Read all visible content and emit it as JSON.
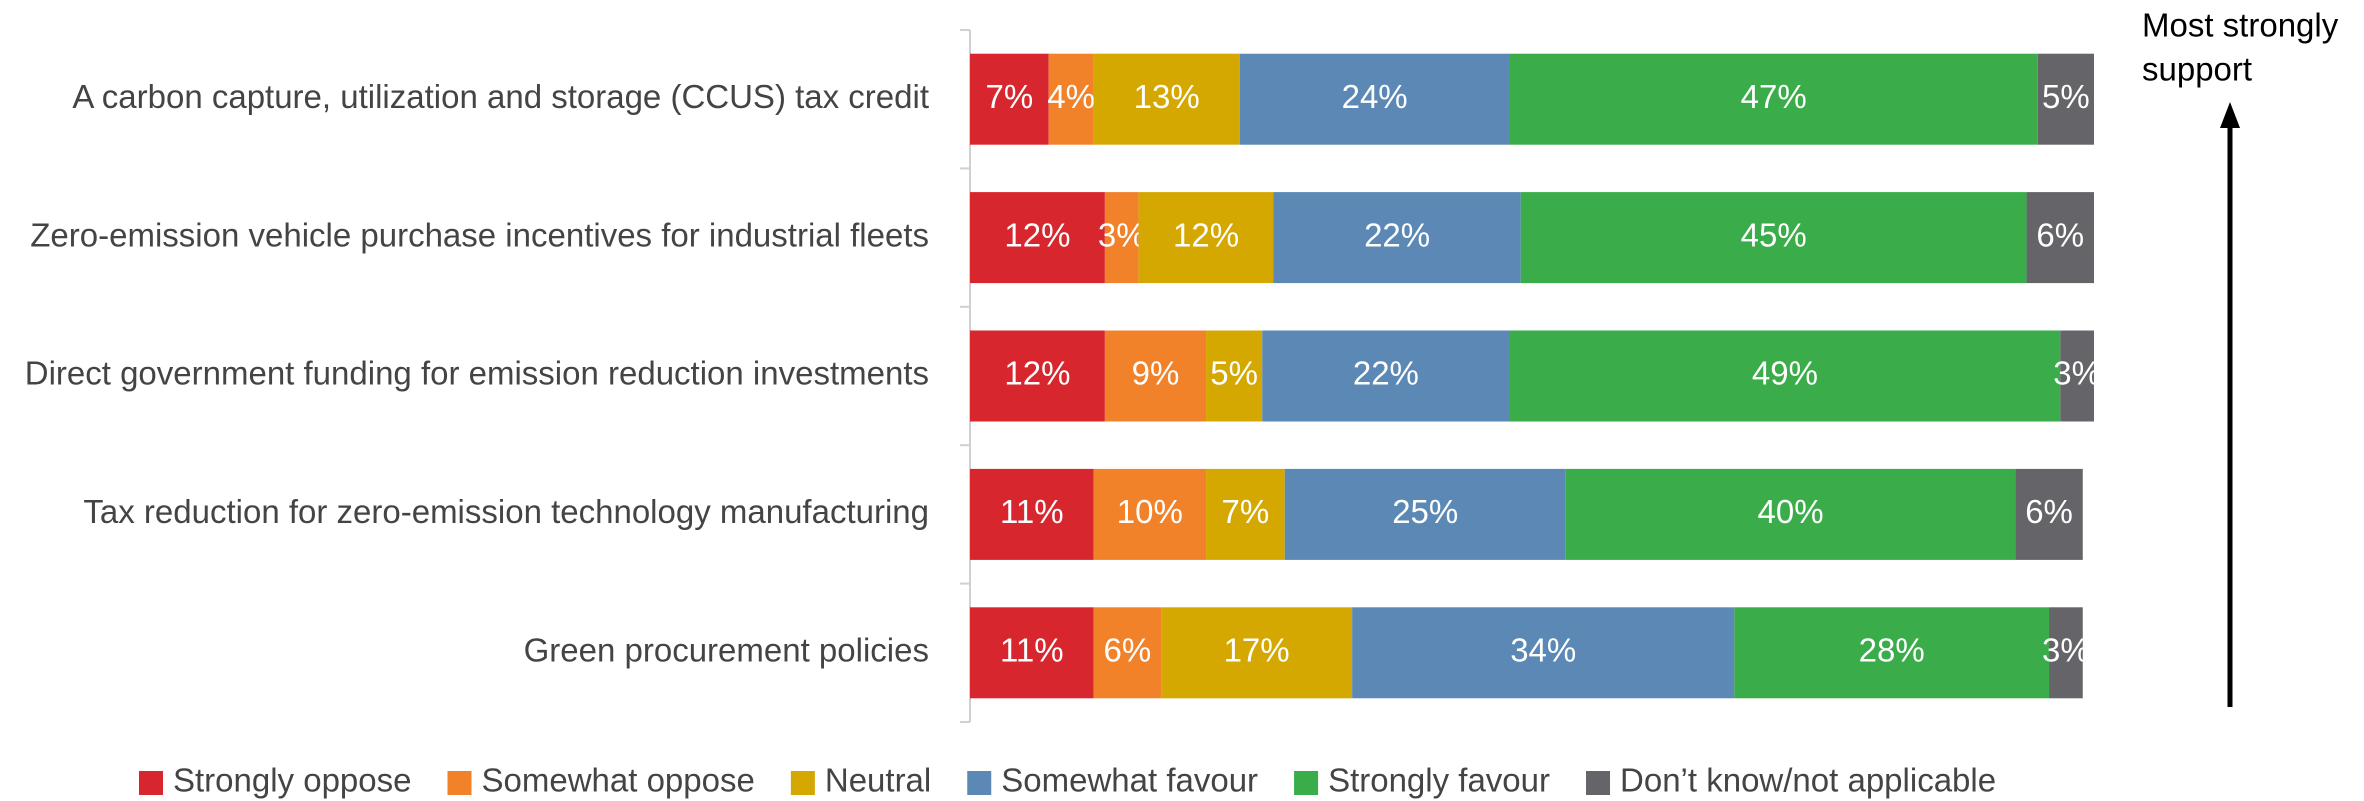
{
  "chart_data": {
    "type": "stacked-bar-horizontal",
    "categories": [
      "A carbon capture, utilization and storage (CCUS) tax credit",
      "Zero-emission vehicle purchase incentives for industrial fleets",
      "Direct government funding for emission reduction investments",
      "Tax reduction for zero-emission technology manufacturing",
      "Green procurement policies"
    ],
    "series": [
      {
        "name": "Strongly oppose",
        "color": "#d7262e",
        "values": [
          7,
          12,
          12,
          11,
          11
        ],
        "value_labels": [
          "7%",
          "12%",
          "12%",
          "11%",
          "11%"
        ]
      },
      {
        "name": "Somewhat oppose",
        "color": "#f28229",
        "values": [
          4,
          3,
          9,
          10,
          6
        ],
        "value_labels": [
          "4%",
          "3%",
          "9%",
          "10%",
          "6%"
        ]
      },
      {
        "name": "Neutral",
        "color": "#d4a800",
        "values": [
          13,
          12,
          5,
          7,
          17
        ],
        "value_labels": [
          "13%",
          "12%",
          "5%",
          "7%",
          "17%"
        ]
      },
      {
        "name": "Somewhat favour",
        "color": "#5b88b5",
        "values": [
          24,
          22,
          22,
          25,
          34
        ],
        "value_labels": [
          "24%",
          "22%",
          "22%",
          "25%",
          "34%"
        ]
      },
      {
        "name": "Strongly favour",
        "color": "#3aad4a",
        "values": [
          47,
          45,
          49,
          40,
          28
        ],
        "value_labels": [
          "47%",
          "45%",
          "49%",
          "40%",
          "28%"
        ]
      },
      {
        "name": "Don’t know/not applicable",
        "color": "#646469",
        "values": [
          5,
          6,
          3,
          6,
          3
        ],
        "value_labels": [
          "5%",
          "6%",
          "3%",
          "6%",
          "3%"
        ]
      }
    ],
    "xlim": [
      0,
      100
    ],
    "annotation": [
      "Most strongly",
      "support"
    ],
    "legend": "bottom"
  }
}
